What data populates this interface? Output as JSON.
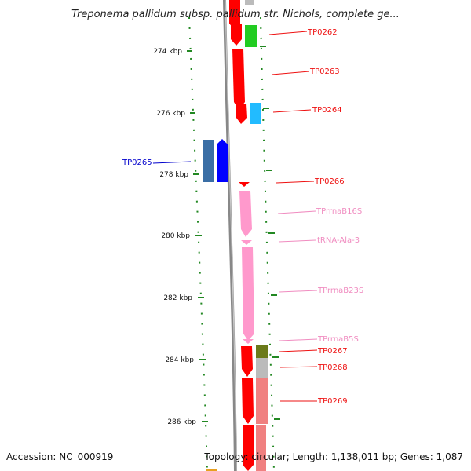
{
  "title": "Treponema pallidum subsp. pallidum str. Nichols, complete ge...",
  "footer": {
    "accession": "Accession: NC_000919",
    "topology": "Topology: circular; Length: 1,138,011 bp; Genes: 1,087"
  },
  "ticks": [
    "274 kbp",
    "276 kbp",
    "278 kbp",
    "280 kbp",
    "282 kbp",
    "284 kbp",
    "286 kbp"
  ],
  "genes": [
    {
      "label": "TP0262",
      "color": "#ee1111"
    },
    {
      "label": "TP0263",
      "color": "#ee1111"
    },
    {
      "label": "TP0264",
      "color": "#ee1111"
    },
    {
      "label": "TP0265",
      "color": "#0000cc"
    },
    {
      "label": "TP0266",
      "color": "#ee1111"
    },
    {
      "label": "TPrrnaB16S",
      "color": "#f08cc0"
    },
    {
      "label": "tRNA-Ala-3",
      "color": "#f08cc0"
    },
    {
      "label": "TPrrnaB23S",
      "color": "#f08cc0"
    },
    {
      "label": "TPrrnaB5S",
      "color": "#f08cc0"
    },
    {
      "label": "TP0267",
      "color": "#ee1111"
    },
    {
      "label": "TP0268",
      "color": "#ee1111"
    },
    {
      "label": "TP0269",
      "color": "#ee1111"
    }
  ],
  "colors": {
    "cds": "#ff0000",
    "rrna": "#ff99cc",
    "cog_green": "#22cc22",
    "cog_cyan": "#22bbff",
    "cog_blue": "#0000ff",
    "cog_steel": "#3a6ea5",
    "cog_olive": "#6b7a1a",
    "cog_grey": "#bbbbbb",
    "cog_salmon": "#f08080",
    "backbone": "#888888",
    "tick_green": "#228822"
  }
}
